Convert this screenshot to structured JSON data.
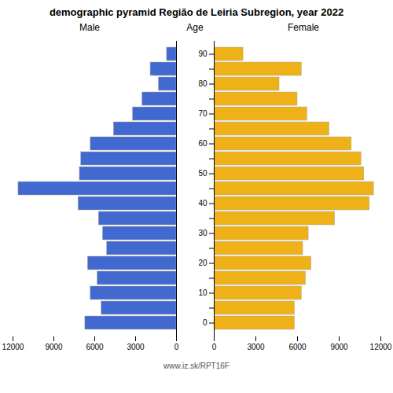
{
  "chart_data": {
    "type": "bar",
    "orientation": "horizontal",
    "title": "demographic pyramid Região de Leiria Subregion, year 2022",
    "ylabel": "Age",
    "caption": "www.iz.sk/RPT16F",
    "categories": [
      90,
      null,
      80,
      null,
      70,
      null,
      60,
      null,
      50,
      null,
      40,
      null,
      30,
      null,
      20,
      null,
      10,
      null,
      0
    ],
    "series": [
      {
        "name": "Male",
        "values": [
          700,
          1900,
          1300,
          2500,
          3200,
          4600,
          6300,
          7000,
          7100,
          11600,
          7200,
          5700,
          5400,
          5100,
          6500,
          5800,
          6300,
          5500,
          6700
        ]
      },
      {
        "name": "Female",
        "values": [
          2100,
          6300,
          4700,
          6000,
          6700,
          8300,
          9900,
          10600,
          10800,
          11500,
          11200,
          8700,
          6800,
          6400,
          7000,
          6600,
          6300,
          5800,
          5800
        ]
      }
    ],
    "xlim": [
      0,
      12000
    ],
    "xticks": [
      0,
      3000,
      6000,
      9000,
      12000
    ],
    "grid": false
  }
}
